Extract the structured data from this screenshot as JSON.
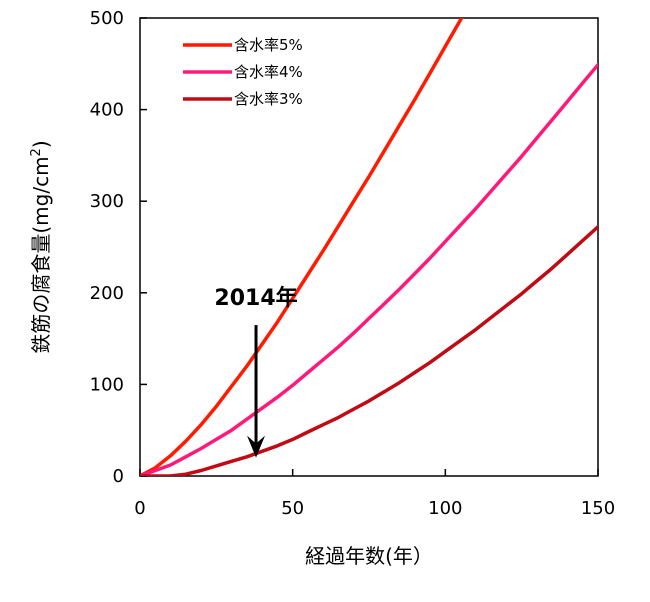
{
  "chart_data": {
    "type": "line",
    "title": "",
    "xlabel": "経過年数(年）",
    "ylabel": "鉄筋の腐食量(mg/cm",
    "ylabel_superscript": "2",
    "ylabel_close": ")",
    "xlim": [
      0,
      150
    ],
    "ylim": [
      0,
      500
    ],
    "xticks": [
      0,
      50,
      100,
      150
    ],
    "yticks": [
      0,
      100,
      200,
      300,
      400,
      500
    ],
    "grid": false,
    "legend_position": "top-left",
    "x": [
      0,
      5,
      10,
      15,
      20,
      25,
      30,
      35,
      40,
      45,
      50,
      55,
      60,
      65,
      70,
      75,
      80,
      85,
      90,
      95,
      100,
      105,
      110,
      115,
      120,
      125,
      130,
      135,
      140,
      145,
      150
    ],
    "series": [
      {
        "name": "含水率5%",
        "color": "#ff1a00",
        "values": [
          0,
          9,
          22,
          38,
          56,
          76,
          98,
          120,
          144,
          168,
          194,
          220,
          246,
          273,
          300,
          327,
          355,
          383,
          411,
          440,
          469,
          498,
          null,
          null,
          null,
          null,
          null,
          null,
          null,
          null,
          null
        ]
      },
      {
        "name": "含水率4%",
        "color": "#ff1a7a",
        "values": [
          0,
          6,
          12,
          21,
          30,
          40,
          50,
          62,
          74,
          86,
          99,
          113,
          127,
          141,
          156,
          172,
          188,
          204,
          221,
          238,
          256,
          274,
          292,
          311,
          330,
          349,
          369,
          389,
          409,
          429,
          449
        ]
      },
      {
        "name": "含水率3%",
        "color": "#c00a14",
        "values": [
          0,
          0,
          0,
          2,
          6,
          11,
          16,
          21,
          27,
          33,
          40,
          48,
          56,
          64,
          73,
          82,
          92,
          102,
          113,
          124,
          136,
          148,
          160,
          173,
          186,
          199,
          213,
          227,
          242,
          257,
          272
        ]
      }
    ],
    "annotation": {
      "text": "2014年",
      "x": 38,
      "arrow_from_y": 180,
      "arrow_to_y": 20,
      "color": "#000000"
    }
  }
}
